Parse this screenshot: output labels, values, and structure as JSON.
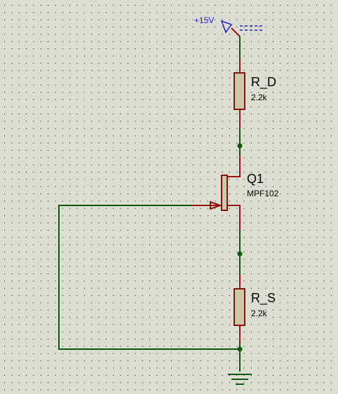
{
  "schematic": {
    "power": {
      "label": "+15V"
    },
    "components": {
      "rd": {
        "ref": "R_D",
        "value": "2.2k"
      },
      "q1": {
        "ref": "Q1",
        "value": "MPF102"
      },
      "rs": {
        "ref": "R_S",
        "value": "2.2k"
      }
    },
    "ground": {
      "symbol": "ground-icon"
    }
  },
  "colors": {
    "background": "#ddded2",
    "grid_dot": "#000000",
    "wire": "#0a5a0a",
    "pin": "#9a1414",
    "body_fill": "#ccc9a9",
    "body_stroke": "#8b1010",
    "junction": "#0a5a0a",
    "power_label": "#1f1fd6"
  }
}
